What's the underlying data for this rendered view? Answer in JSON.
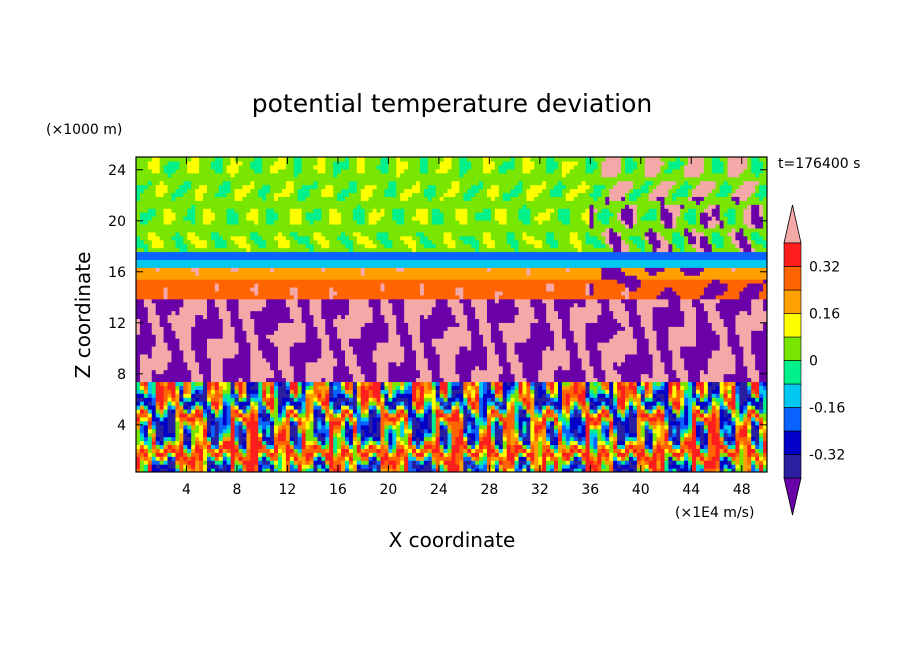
{
  "chart_data": {
    "type": "heatmap",
    "title": "potential temperature deviation",
    "xlabel": "X coordinate",
    "ylabel": "Z coordinate",
    "x_unit": "(×1E4 m/s)",
    "y_unit": "(×1000 m)",
    "time_label": "t=176400 s",
    "xlim": [
      0,
      50
    ],
    "ylim": [
      0.3,
      25
    ],
    "x_ticks": [
      4,
      8,
      12,
      16,
      20,
      24,
      28,
      32,
      36,
      40,
      44,
      48
    ],
    "y_ticks": [
      4,
      8,
      12,
      16,
      20,
      24
    ],
    "colorbar": {
      "extend": "both",
      "levels": [
        -0.4,
        -0.32,
        -0.24,
        -0.16,
        -0.08,
        0,
        0.08,
        0.16,
        0.24,
        0.32,
        0.4
      ],
      "labels": [
        "0.32",
        "0.16",
        "0",
        "-0.16",
        "-0.32"
      ],
      "label_values": [
        0.32,
        0.16,
        0,
        -0.16,
        -0.32
      ],
      "colors": [
        "#6a00a8",
        "#2a1fa0",
        "#0000c8",
        "#0a62ff",
        "#00c8f0",
        "#00f08c",
        "#78e600",
        "#ffff00",
        "#ffa000",
        "#ff6400",
        "#ff1e1e",
        "#f5a8a8"
      ]
    },
    "layers": [
      {
        "z_range": [
          0.3,
          7.5
        ],
        "description_value": "alternating cells",
        "range": [
          -0.4,
          0.4
        ]
      },
      {
        "z_range": [
          7.5,
          14
        ],
        "dominant_values": [
          0.4,
          -0.4
        ]
      },
      {
        "z_range": [
          14,
          16.5
        ],
        "dominant_values": [
          0.28,
          0.2
        ]
      },
      {
        "z_range": [
          16.5,
          17.5
        ],
        "dominant_values": [
          -0.12,
          -0.2
        ]
      },
      {
        "z_range": [
          17.5,
          25
        ],
        "dominant_values": [
          0.02,
          0.08
        ]
      }
    ]
  }
}
